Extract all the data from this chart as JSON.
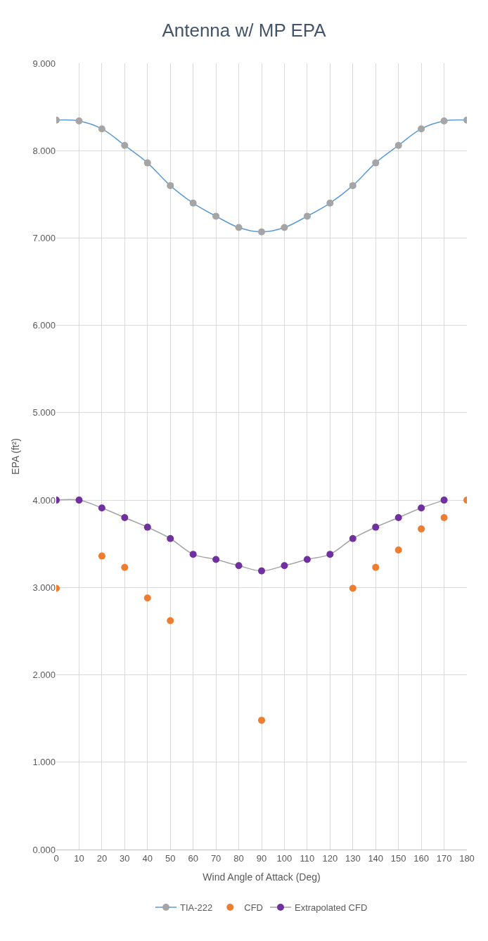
{
  "chart_data": {
    "type": "line",
    "title": "Antenna w/ MP EPA",
    "xlabel": "Wind Angle of Attack (Deg)",
    "ylabel": "EPA (ft²)",
    "x": [
      0,
      10,
      20,
      30,
      40,
      50,
      60,
      70,
      80,
      90,
      100,
      110,
      120,
      130,
      140,
      150,
      160,
      170,
      180
    ],
    "series": [
      {
        "name": "TIA-222",
        "color": "#5b9bd5",
        "colors": [
          "#a5a5a5",
          "#a5a5a5",
          "#a5a5a5",
          "#a5a5a5",
          "#a5a5a5",
          "#a5a5a5",
          "#a5a5a5",
          "#a5a5a5",
          "#a5a5a5",
          "#a5a5a5",
          "#a5a5a5",
          "#a5a5a5",
          "#a5a5a5",
          "#a5a5a5",
          "#a5a5a5",
          "#a5a5a5",
          "#a5a5a5",
          "#a5a5a5",
          "#a5a5a5"
        ],
        "marker": "circle",
        "values": [
          8.35,
          8.34,
          8.25,
          8.06,
          7.86,
          7.6,
          7.4,
          7.25,
          7.12,
          7.07,
          7.12,
          7.25,
          7.4,
          7.6,
          7.86,
          8.06,
          8.25,
          8.34,
          8.35
        ]
      },
      {
        "name": "CFD",
        "type": "scatter",
        "color": "#ed7d31",
        "marker": "circle",
        "values": [
          2.99,
          null,
          3.36,
          3.23,
          2.88,
          2.62,
          null,
          null,
          null,
          1.48,
          null,
          null,
          null,
          2.99,
          3.23,
          3.43,
          3.67,
          3.8,
          4.0
        ]
      },
      {
        "name": "Extrapolated CFD",
        "color": "#a5a5a5",
        "colors": [
          "#7030a0",
          "#7030a0",
          "#7030a0",
          "#7030a0",
          "#7030a0",
          "#7030a0",
          "#7030a0",
          "#7030a0",
          "#7030a0",
          "#7030a0",
          "#7030a0",
          "#7030a0",
          "#7030a0",
          "#7030a0",
          "#7030a0",
          "#7030a0",
          "#7030a0",
          "#7030a0",
          "#7030a0"
        ],
        "marker": "circle",
        "values": [
          4.0,
          4.0,
          3.91,
          3.8,
          3.69,
          3.56,
          3.38,
          3.32,
          3.25,
          3.19,
          3.25,
          3.32,
          3.38,
          3.56,
          3.69,
          3.8,
          3.91,
          4.0,
          null
        ]
      }
    ],
    "xlim": [
      0,
      180
    ],
    "xticks": [
      0,
      10,
      20,
      30,
      40,
      50,
      60,
      70,
      80,
      90,
      100,
      110,
      120,
      130,
      140,
      150,
      160,
      170,
      180
    ],
    "ylim": [
      0,
      9
    ],
    "yticks": [
      {
        "value": 0,
        "label": "0.000"
      },
      {
        "value": 1,
        "label": "1.000"
      },
      {
        "value": 2,
        "label": "2.000"
      },
      {
        "value": 3,
        "label": "3.000"
      },
      {
        "value": 4,
        "label": "4.000"
      },
      {
        "value": 5,
        "label": "5.000"
      },
      {
        "value": 6,
        "label": "6.000"
      },
      {
        "value": 7,
        "label": "7.000"
      },
      {
        "value": 8,
        "label": "8.000"
      },
      {
        "value": 9,
        "label": "9.000"
      }
    ],
    "grid": true,
    "legend": "bottom"
  }
}
